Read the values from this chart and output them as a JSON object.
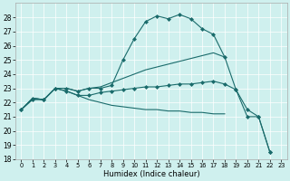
{
  "xlabel": "Humidex (Indice chaleur)",
  "xlim": [
    -0.5,
    23.5
  ],
  "ylim": [
    18,
    29
  ],
  "yticks": [
    18,
    19,
    20,
    21,
    22,
    23,
    24,
    25,
    26,
    27,
    28
  ],
  "xticks": [
    0,
    1,
    2,
    3,
    4,
    5,
    6,
    7,
    8,
    9,
    10,
    11,
    12,
    13,
    14,
    15,
    16,
    17,
    18,
    19,
    20,
    21,
    22,
    23
  ],
  "bg_color": "#cff0ee",
  "line_color": "#1a6b6b",
  "line1": {
    "x": [
      0,
      1,
      2,
      3,
      4,
      5,
      6,
      7,
      8,
      9,
      10,
      11,
      12,
      13,
      14,
      15,
      16,
      17,
      18,
      19,
      20,
      21,
      22
    ],
    "y": [
      21.5,
      22.3,
      22.2,
      23.0,
      23.0,
      22.8,
      23.0,
      23.0,
      23.2,
      25.0,
      26.5,
      27.7,
      28.1,
      27.9,
      28.2,
      27.9,
      27.2,
      26.8,
      25.2,
      22.9,
      21.0,
      21.0,
      18.5
    ],
    "marker": "D",
    "markersize": 2.0
  },
  "line2": {
    "x": [
      0,
      1,
      2,
      3,
      4,
      5,
      6,
      7,
      8,
      9,
      10,
      11,
      12,
      13,
      14,
      15,
      16,
      17,
      18
    ],
    "y": [
      21.5,
      22.3,
      22.2,
      23.0,
      23.0,
      22.8,
      23.0,
      23.1,
      23.4,
      23.7,
      24.0,
      24.3,
      24.5,
      24.7,
      24.9,
      25.1,
      25.3,
      25.5,
      25.2
    ],
    "marker": null
  },
  "line3": {
    "x": [
      0,
      1,
      2,
      3,
      4,
      5,
      6,
      7,
      8,
      9,
      10,
      11,
      12,
      13,
      14,
      15,
      16,
      17,
      18
    ],
    "y": [
      21.5,
      22.3,
      22.2,
      23.0,
      22.8,
      22.5,
      22.2,
      22.0,
      21.8,
      21.7,
      21.6,
      21.5,
      21.5,
      21.4,
      21.4,
      21.3,
      21.3,
      21.2,
      21.2
    ],
    "marker": null
  },
  "line4": {
    "x": [
      0,
      1,
      2,
      3,
      4,
      5,
      6,
      7,
      8,
      9,
      10,
      11,
      12,
      13,
      14,
      15,
      16,
      17,
      18,
      19,
      20,
      21,
      22
    ],
    "y": [
      21.5,
      22.2,
      22.2,
      23.0,
      22.8,
      22.5,
      22.5,
      22.7,
      22.8,
      22.9,
      23.0,
      23.1,
      23.1,
      23.2,
      23.3,
      23.3,
      23.4,
      23.5,
      23.3,
      22.9,
      21.5,
      21.0,
      18.5
    ],
    "marker": "D",
    "markersize": 2.0
  }
}
